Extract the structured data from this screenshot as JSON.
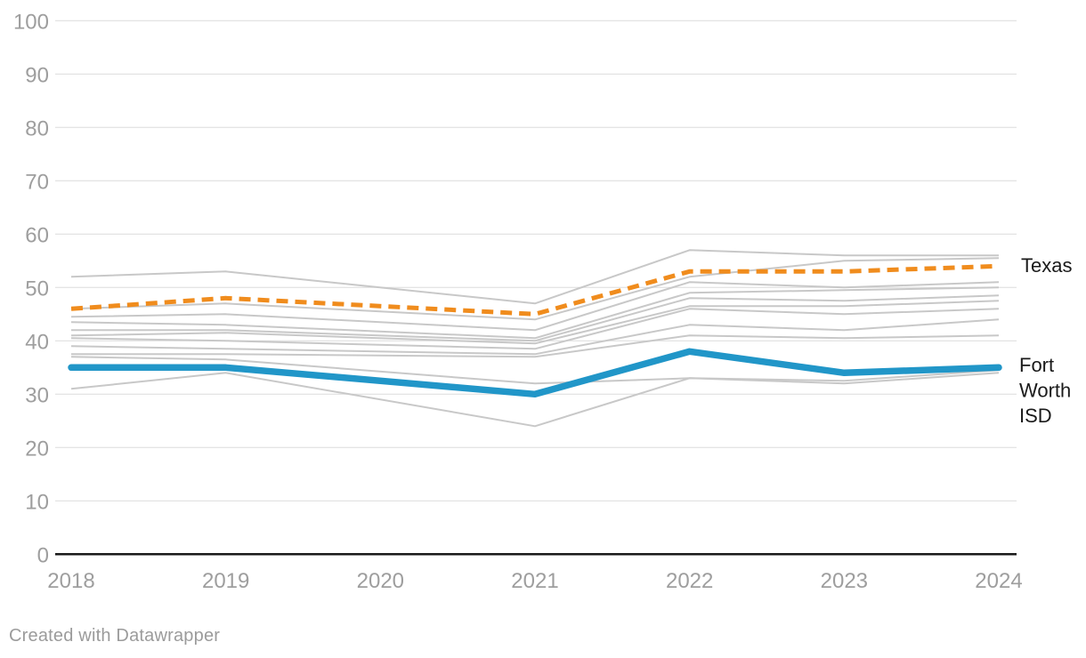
{
  "footer": {
    "credit": "Created with Datawrapper"
  },
  "colors": {
    "texas": "#f08c1d",
    "fort_worth_isd": "#2196c8",
    "other_lines": "#c8c8c8",
    "grid": "#dcdcdc",
    "baseline": "#1a1a1a",
    "axis_text": "#9e9e9e",
    "end_label_text": "#1a1a1a"
  },
  "chart_data": {
    "type": "line",
    "title": "",
    "xlabel": "",
    "ylabel": "",
    "x": [
      2018,
      2019,
      2020,
      2021,
      2022,
      2023,
      2024
    ],
    "x_note": "no data point plotted for 2020; lines connect 2019 directly to 2021",
    "ylim": [
      0,
      100
    ],
    "yticks": [
      0,
      10,
      20,
      30,
      40,
      50,
      60,
      70,
      80,
      90,
      100
    ],
    "grid": "horizontal",
    "legend_position": "line-end-labels-right",
    "series": [
      {
        "label": "",
        "role": "other",
        "values": [
          52,
          53,
          null,
          47,
          57,
          56,
          56
        ]
      },
      {
        "label": "",
        "role": "other",
        "values": [
          46,
          47,
          null,
          44,
          52,
          55,
          55.5
        ]
      },
      {
        "label": "",
        "role": "other",
        "values": [
          44.5,
          45,
          null,
          42,
          51,
          50,
          51
        ]
      },
      {
        "label": "",
        "role": "other",
        "values": [
          43.5,
          43,
          null,
          40.5,
          49,
          49.5,
          50
        ]
      },
      {
        "label": "",
        "role": "other",
        "values": [
          42,
          42,
          null,
          40,
          48,
          47.5,
          48.5
        ]
      },
      {
        "label": "",
        "role": "other",
        "values": [
          41,
          41.5,
          null,
          39.5,
          46.5,
          46.5,
          47.5
        ]
      },
      {
        "label": "",
        "role": "other",
        "values": [
          40.5,
          40,
          null,
          38.5,
          46,
          45,
          46
        ]
      },
      {
        "label": "",
        "role": "other",
        "values": [
          39,
          38.5,
          null,
          37.5,
          43,
          42,
          44
        ]
      },
      {
        "label": "",
        "role": "other",
        "values": [
          37.5,
          37.5,
          null,
          37,
          41,
          40.5,
          41
        ]
      },
      {
        "label": "",
        "role": "other",
        "values": [
          37,
          36.5,
          null,
          32,
          33,
          32.5,
          34.5
        ]
      },
      {
        "label": "",
        "role": "other",
        "values": [
          31,
          34,
          null,
          24,
          33,
          32,
          34
        ]
      },
      {
        "label": "Texas",
        "role": "texas",
        "values": [
          46,
          48,
          null,
          45,
          53,
          53,
          54
        ]
      },
      {
        "label": "Fort Worth ISD",
        "role": "fwisd",
        "values": [
          35,
          35,
          null,
          30,
          38,
          34,
          35
        ]
      }
    ],
    "end_labels": [
      {
        "text": "Texas",
        "lines": [
          "Texas"
        ]
      },
      {
        "text": "Fort Worth ISD",
        "lines": [
          "Fort",
          "Worth",
          "ISD"
        ]
      }
    ]
  }
}
